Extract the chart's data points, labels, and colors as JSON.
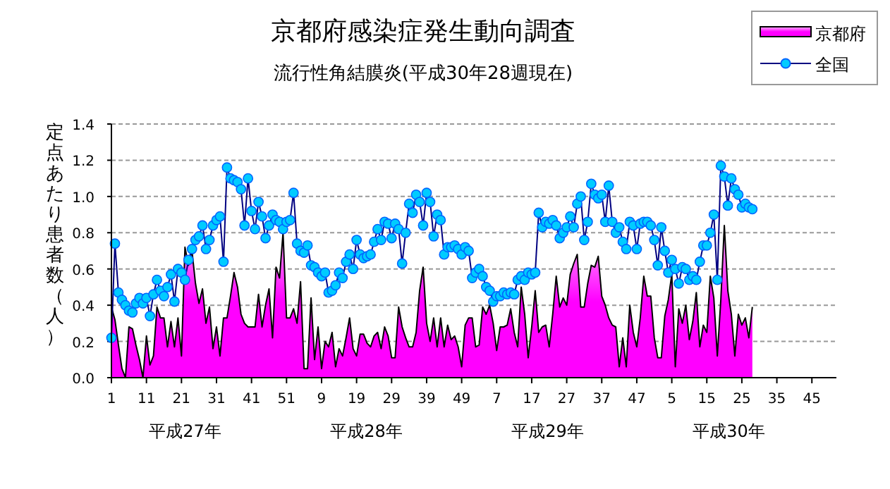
{
  "chart_data": {
    "type": "area",
    "title": "京都府感染症発生動向調査",
    "subtitle": "流行性角結膜炎(平成30年28週現在)",
    "ylabel": "定点あたり患者数（人）",
    "categories": [
      "1",
      null,
      null,
      null,
      null,
      null,
      null,
      null,
      null,
      null,
      "11",
      null,
      null,
      null,
      null,
      null,
      null,
      null,
      null,
      null,
      "21",
      null,
      null,
      null,
      null,
      null,
      null,
      null,
      null,
      null,
      "31",
      null,
      null,
      null,
      null,
      null,
      null,
      null,
      null,
      null,
      "41",
      null,
      null,
      null,
      null,
      null,
      null,
      null,
      null,
      null,
      "51",
      null,
      null,
      null,
      null,
      null,
      null,
      null,
      null,
      null,
      "9",
      null,
      null,
      null,
      null,
      null,
      null,
      null,
      null,
      null,
      "19",
      null,
      null,
      null,
      null,
      null,
      null,
      null,
      null,
      null,
      "29",
      null,
      null,
      null,
      null,
      null,
      null,
      null,
      null,
      null,
      "39",
      null,
      null,
      null,
      null,
      null,
      null,
      null,
      null,
      null,
      "49",
      null,
      null,
      null,
      null,
      null,
      null,
      null,
      null,
      null,
      "7",
      null,
      null,
      null,
      null,
      null,
      null,
      null,
      null,
      null,
      "17",
      null,
      null,
      null,
      null,
      null,
      null,
      null,
      null,
      null,
      "27",
      null,
      null,
      null,
      null,
      null,
      null,
      null,
      null,
      null,
      "37",
      null,
      null,
      null,
      null,
      null,
      null,
      null,
      null,
      null,
      "47",
      null,
      null,
      null,
      null,
      null,
      null,
      null,
      null,
      null,
      "5",
      null,
      null,
      null,
      null,
      null,
      null,
      null,
      null,
      null,
      "15",
      null,
      null,
      null,
      null,
      null,
      null,
      null,
      null,
      null,
      "25",
      null,
      null,
      null,
      null,
      null,
      null,
      null,
      null,
      null,
      "35",
      null,
      null,
      null,
      null,
      null,
      null,
      null,
      null,
      null,
      "45",
      null,
      null,
      null,
      null,
      null,
      null,
      null
    ],
    "series": [
      {
        "name": "京都府",
        "color": "#ff00ff",
        "values": [
          0.39,
          0.32,
          0.18,
          0.05,
          0.0,
          0.28,
          0.27,
          0.18,
          0.1,
          0.0,
          0.23,
          0.07,
          0.12,
          0.39,
          0.33,
          0.33,
          0.17,
          0.31,
          0.17,
          0.33,
          0.12,
          0.72,
          0.62,
          0.7,
          0.52,
          0.41,
          0.49,
          0.3,
          0.39,
          0.16,
          0.28,
          0.12,
          0.33,
          0.33,
          0.45,
          0.58,
          0.5,
          0.35,
          0.3,
          0.28,
          0.28,
          0.28,
          0.46,
          0.28,
          0.4,
          0.49,
          0.22,
          0.61,
          0.55,
          0.8,
          0.33,
          0.33,
          0.38,
          0.3,
          0.53,
          0.05,
          0.05,
          0.44,
          0.1,
          0.28,
          0.05,
          0.2,
          0.17,
          0.25,
          0.06,
          0.16,
          0.12,
          0.22,
          0.33,
          0.16,
          0.12,
          0.24,
          0.24,
          0.19,
          0.17,
          0.23,
          0.25,
          0.16,
          0.28,
          0.23,
          0.11,
          0.11,
          0.39,
          0.28,
          0.22,
          0.17,
          0.17,
          0.25,
          0.48,
          0.61,
          0.3,
          0.2,
          0.33,
          0.17,
          0.33,
          0.17,
          0.29,
          0.21,
          0.23,
          0.17,
          0.06,
          0.29,
          0.33,
          0.33,
          0.17,
          0.18,
          0.39,
          0.35,
          0.4,
          0.3,
          0.15,
          0.28,
          0.28,
          0.29,
          0.38,
          0.25,
          0.17,
          0.5,
          0.35,
          0.11,
          0.28,
          0.48,
          0.25,
          0.28,
          0.29,
          0.17,
          0.35,
          0.56,
          0.39,
          0.44,
          0.4,
          0.57,
          0.63,
          0.68,
          0.39,
          0.39,
          0.52,
          0.62,
          0.61,
          0.67,
          0.45,
          0.4,
          0.33,
          0.29,
          0.28,
          0.06,
          0.22,
          0.06,
          0.4,
          0.25,
          0.17,
          0.33,
          0.56,
          0.45,
          0.45,
          0.22,
          0.11,
          0.11,
          0.34,
          0.43,
          0.57,
          0.06,
          0.38,
          0.3,
          0.4,
          0.21,
          0.31,
          0.47,
          0.17,
          0.29,
          0.25,
          0.56,
          0.44,
          0.12,
          0.43,
          0.84,
          0.48,
          0.35,
          0.12,
          0.35,
          0.29,
          0.33,
          0.22,
          0.39,
          null,
          null,
          null,
          null,
          null,
          null,
          null,
          null,
          null,
          null,
          null,
          null,
          null,
          null,
          null,
          null,
          null,
          null,
          null,
          null,
          null,
          null,
          null,
          null
        ]
      },
      {
        "name": "全国",
        "type": "line",
        "color": "#000080",
        "marker": "circle",
        "values": [
          0.22,
          0.74,
          0.47,
          0.43,
          0.4,
          0.37,
          0.36,
          0.41,
          0.44,
          0.41,
          0.44,
          0.34,
          0.46,
          0.54,
          0.48,
          0.45,
          0.5,
          0.57,
          0.42,
          0.6,
          0.58,
          0.54,
          0.65,
          0.71,
          0.76,
          0.78,
          0.84,
          0.71,
          0.76,
          0.84,
          0.87,
          0.89,
          0.64,
          1.16,
          1.1,
          1.09,
          1.08,
          1.04,
          0.84,
          1.1,
          0.92,
          0.82,
          0.97,
          0.89,
          0.77,
          0.84,
          0.9,
          0.87,
          0.86,
          0.82,
          0.86,
          0.87,
          1.02,
          0.74,
          0.7,
          0.69,
          0.73,
          0.62,
          0.61,
          0.58,
          0.56,
          0.58,
          0.47,
          0.48,
          0.51,
          0.58,
          0.55,
          0.64,
          0.68,
          0.6,
          0.76,
          0.68,
          0.66,
          0.67,
          0.68,
          0.75,
          0.82,
          0.76,
          0.86,
          0.85,
          0.77,
          0.85,
          0.82,
          0.63,
          0.8,
          0.96,
          0.91,
          1.01,
          0.97,
          0.84,
          1.02,
          0.97,
          0.78,
          0.9,
          0.87,
          0.68,
          0.72,
          0.72,
          0.73,
          0.71,
          0.68,
          0.72,
          0.7,
          0.55,
          0.58,
          0.6,
          0.56,
          0.5,
          0.48,
          0.42,
          0.45,
          0.45,
          0.47,
          0.46,
          0.47,
          0.46,
          0.54,
          0.56,
          0.54,
          0.58,
          0.57,
          0.58,
          0.91,
          0.83,
          0.86,
          0.85,
          0.87,
          0.84,
          0.77,
          0.8,
          0.83,
          0.89,
          0.83,
          0.96,
          1.0,
          0.76,
          0.86,
          1.07,
          1.01,
          0.99,
          1.01,
          0.86,
          1.06,
          0.86,
          0.8,
          0.83,
          0.75,
          0.71,
          0.86,
          0.84,
          0.71,
          0.85,
          0.86,
          0.86,
          0.84,
          0.76,
          0.62,
          0.83,
          0.7,
          0.58,
          0.65,
          0.6,
          0.52,
          0.61,
          0.6,
          0.54,
          0.56,
          0.54,
          0.64,
          0.73,
          0.73,
          0.8,
          0.9,
          0.54,
          1.17,
          1.11,
          0.95,
          1.1,
          1.04,
          1.01,
          0.94,
          0.96,
          0.94,
          0.93,
          null,
          null,
          null,
          null,
          null,
          null,
          null,
          null,
          null,
          null,
          null,
          null,
          null,
          null,
          null,
          null,
          null,
          null,
          null,
          null,
          null,
          null,
          null,
          null
        ]
      }
    ],
    "ylim": [
      0,
      1.4
    ],
    "yticks": [
      {
        "value": 0,
        "label": "0.0"
      },
      {
        "value": 0.2,
        "label": "0.2"
      },
      {
        "value": 0.4,
        "label": "0.4"
      },
      {
        "value": 0.6,
        "label": "0.6"
      },
      {
        "value": 0.8,
        "label": "0.8"
      },
      {
        "value": 1.0,
        "label": "1.0"
      },
      {
        "value": 1.2,
        "label": "1.2"
      },
      {
        "value": 1.4,
        "label": "1.4"
      }
    ],
    "annotations": [
      "平成27年",
      "平成28年",
      "平成29年",
      "平成30年"
    ],
    "grid": "y",
    "legend": "top right"
  }
}
